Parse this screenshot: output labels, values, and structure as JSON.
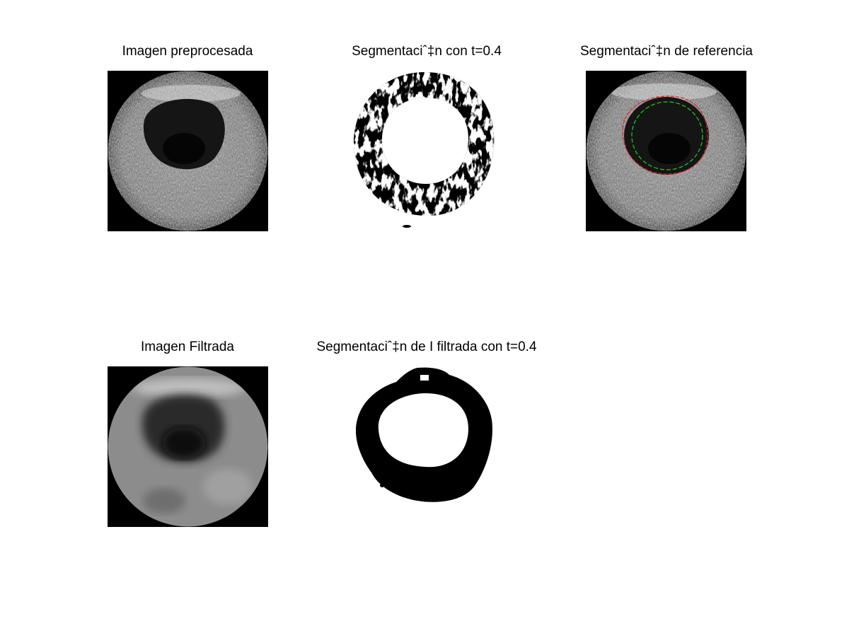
{
  "figure": {
    "titles": {
      "preprocessed": "Imagen preprocesada",
      "segmentation": "Segmentaciˆ‡n con t=0.4",
      "reference": "Segmentaciˆ‡n de referencia",
      "filtered": "Imagen Filtrada",
      "filtered_segmentation": "Segmentaciˆ‡n de I filtrada con t=0.4"
    },
    "colors": {
      "background": "#ffffff",
      "image_black": "#000000",
      "reference_outer_contour": "#e0202a",
      "reference_inner_contour": "#1fd01f"
    }
  }
}
